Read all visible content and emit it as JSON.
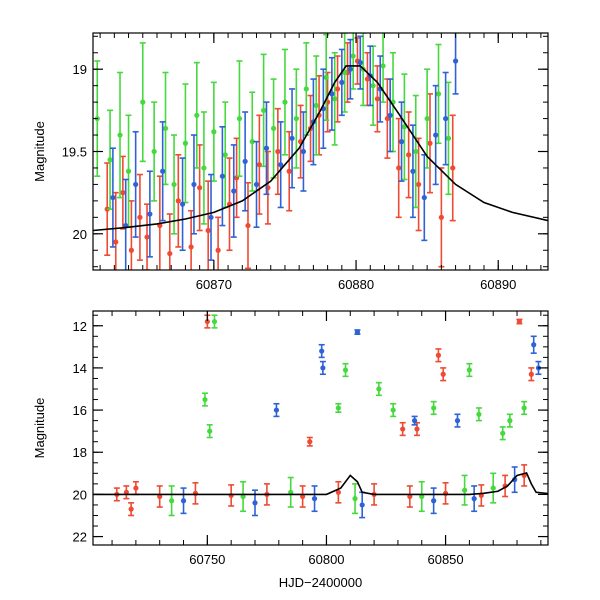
{
  "chart_data": [
    {
      "type": "scatter",
      "title": "",
      "xlabel": "",
      "ylabel": "Magnitude",
      "xlim": [
        60861.5,
        60893.5
      ],
      "ylim": [
        20.22,
        18.78
      ],
      "y_inverted": true,
      "x_ticks": [
        60870,
        60880,
        60890
      ],
      "y_ticks": [
        19,
        19.5,
        20
      ],
      "y_tick_labels": [
        "19",
        "19.5",
        "20"
      ],
      "grid": false,
      "legend": "none",
      "model_curve": {
        "color": "#000000",
        "x": [
          60861.5,
          60864,
          60866,
          60868,
          60870,
          60872,
          60874,
          60876,
          60877.5,
          60878.5,
          60879.3,
          60880.3,
          60881.5,
          60883,
          60885,
          60887,
          60889,
          60891,
          60893.5
        ],
        "y": [
          19.98,
          19.96,
          19.94,
          19.91,
          19.87,
          19.8,
          19.68,
          19.48,
          19.25,
          19.08,
          18.98,
          18.98,
          19.08,
          19.27,
          19.53,
          19.7,
          19.81,
          19.87,
          19.92
        ]
      },
      "series": [
        {
          "color": "#ef4a32",
          "x": [
            60862.5,
            60863.1,
            60863.6,
            60864.2,
            60864.8,
            60865.3,
            60866.2,
            60866.9,
            60867.5,
            60868.4,
            60869.0,
            60869.6,
            60870.3,
            60871.1,
            60871.6,
            60872.4,
            60873.2,
            60873.8,
            60874.5,
            60875.3,
            60876.1,
            60876.8,
            60877.4,
            60878.0,
            60878.7,
            60879.4,
            60880.1,
            60880.8,
            60881.5,
            60882.2,
            60883.0,
            60883.7,
            60884.4,
            60885.2,
            60886.0,
            60886.8
          ],
          "y": [
            19.85,
            20.05,
            19.75,
            20.1,
            19.9,
            20.02,
            19.95,
            20.12,
            19.8,
            20.08,
            19.72,
            19.98,
            20.1,
            19.82,
            19.66,
            19.95,
            19.58,
            19.72,
            19.5,
            19.62,
            19.44,
            19.36,
            19.28,
            19.2,
            19.12,
            19.02,
            18.95,
            19.06,
            19.18,
            19.3,
            19.6,
            19.52,
            19.7,
            19.45,
            19.9,
            19.6
          ],
          "err": [
            0.28,
            0.3,
            0.22,
            0.3,
            0.26,
            0.2,
            0.3,
            0.24,
            0.28,
            0.22,
            0.26,
            0.3,
            0.2,
            0.28,
            0.24,
            0.26,
            0.3,
            0.22,
            0.26,
            0.24,
            0.22,
            0.2,
            0.24,
            0.18,
            0.2,
            0.18,
            0.14,
            0.16,
            0.2,
            0.24,
            0.3,
            0.26,
            0.28,
            0.3,
            0.3,
            0.32
          ]
        },
        {
          "color": "#45d93e",
          "x": [
            60861.8,
            60862.7,
            60863.4,
            60864.0,
            60865.0,
            60865.8,
            60866.6,
            60867.2,
            60868.0,
            60868.8,
            60869.3,
            60870.0,
            60870.8,
            60871.8,
            60872.7,
            60873.5,
            60874.2,
            60875.0,
            60875.8,
            60876.5,
            60877.2,
            60877.9,
            60878.5,
            60879.2,
            60879.8,
            60880.5,
            60881.2,
            60881.9,
            60882.6,
            60883.4,
            60884.2,
            60885.0,
            60885.8,
            60886.5
          ],
          "y": [
            19.3,
            19.55,
            19.4,
            19.62,
            19.2,
            19.5,
            19.36,
            19.7,
            19.45,
            19.28,
            19.6,
            19.38,
            19.52,
            19.3,
            19.44,
            19.25,
            19.36,
            19.2,
            19.3,
            19.12,
            19.22,
            19.05,
            19.18,
            19.02,
            18.92,
            19.0,
            19.1,
            18.98,
            19.2,
            19.35,
            19.5,
            19.3,
            19.15,
            19.42
          ],
          "err": [
            0.35,
            0.3,
            0.38,
            0.34,
            0.36,
            0.3,
            0.34,
            0.3,
            0.36,
            0.32,
            0.34,
            0.3,
            0.32,
            0.35,
            0.3,
            0.34,
            0.3,
            0.32,
            0.3,
            0.28,
            0.3,
            0.26,
            0.28,
            0.24,
            0.2,
            0.22,
            0.24,
            0.22,
            0.3,
            0.32,
            0.34,
            0.3,
            0.3,
            0.34
          ]
        },
        {
          "color": "#2f62d6",
          "x": [
            60862.9,
            60863.8,
            60864.5,
            60865.5,
            60866.4,
            60867.8,
            60868.6,
            60869.8,
            60870.6,
            60871.4,
            60872.2,
            60873.0,
            60873.7,
            60874.7,
            60875.5,
            60876.3,
            60877.0,
            60877.7,
            60878.3,
            60879.0,
            60879.6,
            60880.3,
            60881.0,
            60881.7,
            60882.4,
            60883.2,
            60884.0,
            60884.8,
            60885.6,
            60886.3,
            60887.0
          ],
          "y": [
            19.78,
            19.95,
            19.7,
            19.88,
            19.62,
            19.82,
            19.7,
            19.9,
            19.65,
            19.74,
            19.56,
            19.7,
            19.48,
            19.58,
            19.42,
            19.5,
            19.32,
            19.24,
            19.15,
            19.08,
            19.0,
            18.96,
            19.04,
            19.12,
            19.28,
            19.44,
            19.62,
            19.78,
            19.4,
            19.3,
            18.95
          ],
          "err": [
            0.3,
            0.28,
            0.32,
            0.26,
            0.3,
            0.28,
            0.3,
            0.26,
            0.3,
            0.28,
            0.3,
            0.26,
            0.28,
            0.26,
            0.3,
            0.24,
            0.26,
            0.24,
            0.22,
            0.2,
            0.18,
            0.16,
            0.18,
            0.2,
            0.22,
            0.24,
            0.28,
            0.26,
            0.3,
            0.28,
            0.2
          ]
        }
      ]
    },
    {
      "type": "scatter",
      "title": "",
      "xlabel": "HJD−2400000",
      "ylabel": "Magnitude",
      "xlim": [
        60702,
        60893
      ],
      "ylim": [
        22.4,
        11.3
      ],
      "y_inverted": true,
      "x_ticks": [
        60750,
        60800,
        60850
      ],
      "y_ticks": [
        12,
        14,
        16,
        18,
        20,
        22
      ],
      "y_tick_labels": [
        "12",
        "14",
        "16",
        "18",
        "20",
        "22"
      ],
      "grid": false,
      "legend": "none",
      "model_curve": {
        "color": "#000000",
        "x": [
          60702,
          60730,
          60760,
          60790,
          60800,
          60806,
          60810,
          60813,
          60815,
          60820,
          60830,
          60840,
          60850,
          60860,
          60866,
          60872,
          60876,
          60880,
          60884,
          60886,
          60888,
          60893
        ],
        "y": [
          20.0,
          20.0,
          20.0,
          20.0,
          20.0,
          19.7,
          19.1,
          19.4,
          19.9,
          20.0,
          20.0,
          20.0,
          20.0,
          20.0,
          19.95,
          19.85,
          19.6,
          19.1,
          18.98,
          19.5,
          19.9,
          19.96
        ]
      },
      "series": [
        {
          "color": "#ef4a32",
          "x": [
            60712,
            60716,
            60718,
            60720,
            60750,
            60793,
            60832,
            60838,
            60847,
            60849,
            60881,
            60886,
            60730,
            60745,
            60760,
            60775,
            60790,
            60805,
            60820,
            60835,
            60850,
            60865,
            60875,
            60883
          ],
          "y": [
            20.0,
            19.9,
            20.7,
            19.7,
            11.8,
            17.5,
            16.9,
            16.9,
            13.4,
            14.3,
            11.8,
            14.3,
            20.1,
            19.95,
            20.05,
            20.0,
            20.1,
            19.9,
            20.0,
            20.1,
            19.95,
            20.05,
            19.6,
            19.1
          ],
          "err": [
            0.3,
            0.3,
            0.3,
            0.3,
            0.3,
            0.2,
            0.3,
            0.3,
            0.3,
            0.3,
            0.1,
            0.3,
            0.5,
            0.5,
            0.5,
            0.5,
            0.5,
            0.5,
            0.5,
            0.5,
            0.5,
            0.5,
            0.5,
            0.5
          ]
        },
        {
          "color": "#45d93e",
          "x": [
            60753,
            60749,
            60751,
            60805,
            60808,
            60822,
            60828,
            60845,
            60860,
            60864,
            60877,
            60883,
            60874,
            60735,
            60765,
            60785,
            60812,
            60840,
            60858,
            60870
          ],
          "y": [
            11.8,
            15.5,
            17.0,
            15.9,
            14.1,
            15.0,
            16.0,
            15.9,
            14.1,
            16.2,
            16.5,
            15.9,
            17.1,
            20.3,
            20.1,
            19.9,
            20.2,
            20.1,
            19.8,
            19.7
          ],
          "err": [
            0.3,
            0.3,
            0.3,
            0.2,
            0.3,
            0.3,
            0.3,
            0.3,
            0.3,
            0.3,
            0.3,
            0.3,
            0.3,
            0.7,
            0.7,
            0.7,
            0.7,
            0.7,
            0.7,
            0.7
          ]
        },
        {
          "color": "#2f62d6",
          "x": [
            60798,
            60798.5,
            60813,
            60779,
            60837,
            60855,
            60887,
            60889,
            60740,
            60770,
            60795,
            60815,
            60845,
            60862,
            60879
          ],
          "y": [
            13.2,
            14.0,
            12.3,
            16.0,
            16.5,
            16.5,
            12.9,
            14.0,
            20.3,
            20.4,
            20.2,
            20.5,
            20.3,
            20.2,
            19.3
          ],
          "err": [
            0.3,
            0.3,
            0.1,
            0.3,
            0.2,
            0.3,
            0.4,
            0.3,
            0.6,
            0.6,
            0.6,
            0.6,
            0.6,
            0.6,
            0.6
          ]
        }
      ]
    }
  ]
}
